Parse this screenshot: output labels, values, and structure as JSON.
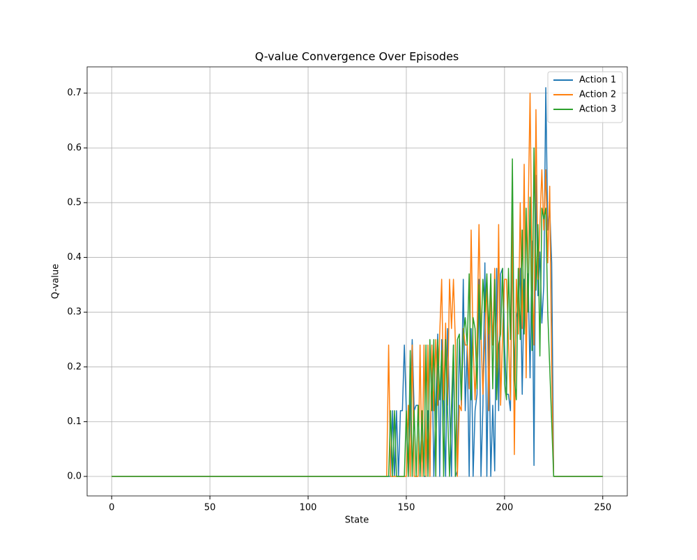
{
  "chart_data": {
    "type": "line",
    "title": "Q-value Convergence Over Episodes",
    "x_label": "State",
    "y_label": "Q-value",
    "x": [
      0,
      1,
      2,
      3,
      4,
      5,
      6,
      7,
      8,
      9,
      10,
      11,
      12,
      13,
      14,
      15,
      16,
      17,
      18,
      19,
      20,
      21,
      22,
      23,
      24,
      25,
      26,
      27,
      28,
      29,
      30,
      31,
      32,
      33,
      34,
      35,
      36,
      37,
      38,
      39,
      40,
      41,
      42,
      43,
      44,
      45,
      46,
      47,
      48,
      49,
      50,
      51,
      52,
      53,
      54,
      55,
      56,
      57,
      58,
      59,
      60,
      61,
      62,
      63,
      64,
      65,
      66,
      67,
      68,
      69,
      70,
      71,
      72,
      73,
      74,
      75,
      76,
      77,
      78,
      79,
      80,
      81,
      82,
      83,
      84,
      85,
      86,
      87,
      88,
      89,
      90,
      91,
      92,
      93,
      94,
      95,
      96,
      97,
      98,
      99,
      100,
      101,
      102,
      103,
      104,
      105,
      106,
      107,
      108,
      109,
      110,
      111,
      112,
      113,
      114,
      115,
      116,
      117,
      118,
      119,
      120,
      121,
      122,
      123,
      124,
      125,
      126,
      127,
      128,
      129,
      130,
      131,
      132,
      133,
      134,
      135,
      136,
      137,
      138,
      139,
      140,
      141,
      142,
      143,
      144,
      145,
      146,
      147,
      148,
      149,
      150,
      151,
      152,
      153,
      154,
      155,
      156,
      157,
      158,
      159,
      160,
      161,
      162,
      163,
      164,
      165,
      166,
      167,
      168,
      169,
      170,
      171,
      172,
      173,
      174,
      175,
      176,
      177,
      178,
      179,
      180,
      181,
      182,
      183,
      184,
      185,
      186,
      187,
      188,
      189,
      190,
      191,
      192,
      193,
      194,
      195,
      196,
      197,
      198,
      199,
      200,
      201,
      202,
      203,
      204,
      205,
      206,
      207,
      208,
      209,
      210,
      211,
      212,
      213,
      214,
      215,
      216,
      217,
      218,
      219,
      220,
      221,
      222,
      223,
      224,
      225,
      226,
      227,
      228,
      229,
      230,
      231,
      232,
      233,
      234,
      235,
      236,
      237,
      238,
      239,
      240,
      241,
      242,
      243,
      244,
      245,
      246,
      247,
      248,
      249,
      250
    ],
    "series": [
      {
        "name": "Action 1",
        "color": "#1f77b4",
        "values": [
          0,
          0,
          0,
          0,
          0,
          0,
          0,
          0,
          0,
          0,
          0,
          0,
          0,
          0,
          0,
          0,
          0,
          0,
          0,
          0,
          0,
          0,
          0,
          0,
          0,
          0,
          0,
          0,
          0,
          0,
          0,
          0,
          0,
          0,
          0,
          0,
          0,
          0,
          0,
          0,
          0,
          0,
          0,
          0,
          0,
          0,
          0,
          0,
          0,
          0,
          0,
          0,
          0,
          0,
          0,
          0,
          0,
          0,
          0,
          0,
          0,
          0,
          0,
          0,
          0,
          0,
          0,
          0,
          0,
          0,
          0,
          0,
          0,
          0,
          0,
          0,
          0,
          0,
          0,
          0,
          0,
          0,
          0,
          0,
          0,
          0,
          0,
          0,
          0,
          0,
          0,
          0,
          0,
          0,
          0,
          0,
          0,
          0,
          0,
          0,
          0,
          0,
          0,
          0,
          0,
          0,
          0,
          0,
          0,
          0,
          0,
          0,
          0,
          0,
          0,
          0,
          0,
          0,
          0,
          0,
          0,
          0,
          0,
          0,
          0,
          0,
          0,
          0,
          0,
          0,
          0,
          0,
          0,
          0,
          0,
          0,
          0,
          0,
          0,
          0,
          0,
          0,
          0,
          0.12,
          0,
          0.12,
          0,
          0.12,
          0.12,
          0.24,
          0.12,
          0,
          0.12,
          0.25,
          0.12,
          0.13,
          0.13,
          0,
          0.12,
          0,
          0,
          0.12,
          0,
          0.24,
          0,
          0.13,
          0.26,
          0,
          0.25,
          0.13,
          0,
          0.27,
          0.13,
          0,
          0.24,
          0,
          0.01,
          0.25,
          0.13,
          0.36,
          0.12,
          0.24,
          0,
          0.27,
          0,
          0.12,
          0.15,
          0.36,
          0,
          0.13,
          0.39,
          0,
          0.27,
          0,
          0.13,
          0.01,
          0.38,
          0.12,
          0.37,
          0.38,
          0.24,
          0.15,
          0.15,
          0.12,
          0.43,
          0.18,
          0.29,
          0.31,
          0.38,
          0.15,
          0.36,
          0.24,
          0.37,
          0.18,
          0.43,
          0.02,
          0.55,
          0.33,
          0.41,
          0.28,
          0.35,
          0.71,
          0.45,
          0.49,
          0.39,
          0,
          0,
          0,
          0,
          0,
          0,
          0,
          0,
          0,
          0,
          0,
          0,
          0,
          0,
          0,
          0,
          0,
          0,
          0,
          0,
          0,
          0,
          0,
          0,
          0,
          0
        ]
      },
      {
        "name": "Action 2",
        "color": "#ff7f0e",
        "values": [
          0,
          0,
          0,
          0,
          0,
          0,
          0,
          0,
          0,
          0,
          0,
          0,
          0,
          0,
          0,
          0,
          0,
          0,
          0,
          0,
          0,
          0,
          0,
          0,
          0,
          0,
          0,
          0,
          0,
          0,
          0,
          0,
          0,
          0,
          0,
          0,
          0,
          0,
          0,
          0,
          0,
          0,
          0,
          0,
          0,
          0,
          0,
          0,
          0,
          0,
          0,
          0,
          0,
          0,
          0,
          0,
          0,
          0,
          0,
          0,
          0,
          0,
          0,
          0,
          0,
          0,
          0,
          0,
          0,
          0,
          0,
          0,
          0,
          0,
          0,
          0,
          0,
          0,
          0,
          0,
          0,
          0,
          0,
          0,
          0,
          0,
          0,
          0,
          0,
          0,
          0,
          0,
          0,
          0,
          0,
          0,
          0,
          0,
          0,
          0,
          0,
          0,
          0,
          0,
          0,
          0,
          0,
          0,
          0,
          0,
          0,
          0,
          0,
          0,
          0,
          0,
          0,
          0,
          0,
          0,
          0,
          0,
          0,
          0,
          0,
          0,
          0,
          0,
          0,
          0,
          0,
          0,
          0,
          0,
          0,
          0,
          0,
          0,
          0,
          0,
          0,
          0.24,
          0,
          0,
          0,
          0,
          0,
          0,
          0,
          0,
          0,
          0.13,
          0,
          0.24,
          0,
          0,
          0,
          0.24,
          0,
          0.24,
          0,
          0.24,
          0,
          0.24,
          0.12,
          0.25,
          0.13,
          0.26,
          0.36,
          0.14,
          0.28,
          0.13,
          0.36,
          0.27,
          0.36,
          0.24,
          0,
          0.13,
          0.12,
          0.27,
          0.24,
          0.24,
          0.16,
          0.45,
          0.24,
          0.14,
          0.25,
          0.46,
          0.26,
          0.15,
          0.25,
          0.36,
          0.12,
          0.36,
          0.24,
          0.38,
          0.15,
          0.46,
          0.13,
          0.26,
          0.36,
          0.36,
          0.25,
          0.14,
          0.48,
          0.04,
          0.36,
          0.26,
          0.5,
          0.27,
          0.57,
          0.18,
          0.47,
          0.7,
          0.37,
          0.24,
          0.67,
          0.36,
          0.46,
          0.56,
          0.45,
          0.56,
          0.39,
          0.53,
          0.2,
          0,
          0,
          0,
          0,
          0,
          0,
          0,
          0,
          0,
          0,
          0,
          0,
          0,
          0,
          0,
          0,
          0,
          0,
          0,
          0,
          0,
          0,
          0,
          0,
          0,
          0
        ]
      },
      {
        "name": "Action 3",
        "color": "#2ca02c",
        "values": [
          0,
          0,
          0,
          0,
          0,
          0,
          0,
          0,
          0,
          0,
          0,
          0,
          0,
          0,
          0,
          0,
          0,
          0,
          0,
          0,
          0,
          0,
          0,
          0,
          0,
          0,
          0,
          0,
          0,
          0,
          0,
          0,
          0,
          0,
          0,
          0,
          0,
          0,
          0,
          0,
          0,
          0,
          0,
          0,
          0,
          0,
          0,
          0,
          0,
          0,
          0,
          0,
          0,
          0,
          0,
          0,
          0,
          0,
          0,
          0,
          0,
          0,
          0,
          0,
          0,
          0,
          0,
          0,
          0,
          0,
          0,
          0,
          0,
          0,
          0,
          0,
          0,
          0,
          0,
          0,
          0,
          0,
          0,
          0,
          0,
          0,
          0,
          0,
          0,
          0,
          0,
          0,
          0,
          0,
          0,
          0,
          0,
          0,
          0,
          0,
          0,
          0,
          0,
          0,
          0,
          0,
          0,
          0,
          0,
          0,
          0,
          0,
          0,
          0,
          0,
          0,
          0,
          0,
          0,
          0,
          0,
          0,
          0,
          0,
          0,
          0,
          0,
          0,
          0,
          0,
          0,
          0,
          0,
          0,
          0,
          0,
          0,
          0,
          0,
          0,
          0,
          0,
          0.12,
          0,
          0.12,
          0,
          0,
          0,
          0,
          0,
          0.12,
          0,
          0.23,
          0,
          0.12,
          0,
          0.13,
          0,
          0.12,
          0,
          0.24,
          0,
          0.25,
          0.12,
          0.25,
          0,
          0.25,
          0.14,
          0.23,
          0,
          0.25,
          0.12,
          0,
          0.13,
          0.24,
          0,
          0.25,
          0.26,
          0.14,
          0.26,
          0.29,
          0.24,
          0.37,
          0.14,
          0.29,
          0.27,
          0.16,
          0.35,
          0.25,
          0.36,
          0.3,
          0.37,
          0.26,
          0.37,
          0.16,
          0.36,
          0.14,
          0.24,
          0.26,
          0.38,
          0.17,
          0.14,
          0.38,
          0.25,
          0.58,
          0.18,
          0.14,
          0.38,
          0.25,
          0.45,
          0.26,
          0.49,
          0.3,
          0.51,
          0.23,
          0.6,
          0.34,
          0.46,
          0.22,
          0.49,
          0.47,
          0.49,
          0.3,
          0.2,
          0.1,
          0,
          0,
          0,
          0,
          0,
          0,
          0,
          0,
          0,
          0,
          0,
          0,
          0,
          0,
          0,
          0,
          0,
          0,
          0,
          0,
          0,
          0,
          0,
          0,
          0,
          0
        ]
      }
    ],
    "xlim": [
      -12.5,
      262.5
    ],
    "ylim": [
      -0.0356,
      0.748
    ],
    "xticks": [
      0,
      50,
      100,
      150,
      200,
      250
    ],
    "yticks": [
      {
        "value": 0,
        "label": "0.0"
      },
      0.1,
      0.2,
      0.3,
      0.4,
      0.5,
      0.6,
      0.7
    ],
    "grid": true,
    "legend": "upper right"
  }
}
